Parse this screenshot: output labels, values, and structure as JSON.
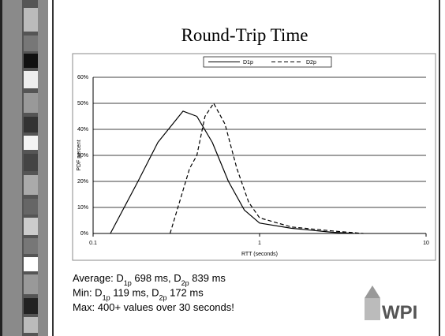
{
  "slide": {
    "title": "Round-Trip Time",
    "lines": [
      [
        "Average: D",
        "1p",
        " 698 ms, D",
        "2p",
        " 839 ms"
      ],
      [
        "Min: D",
        "1p",
        " 119 ms, D",
        "2p",
        " 172 ms"
      ],
      [
        "Max: 400+ values over 30 seconds!"
      ]
    ],
    "logo": "WPI"
  },
  "chart_data": {
    "type": "line",
    "xlabel": "RTT (seconds)",
    "ylabel": "PDF percent",
    "xscale": "log",
    "xlim": [
      0.1,
      10
    ],
    "xticks": [
      0.1,
      1,
      10
    ],
    "ylim": [
      0,
      60
    ],
    "yticks": [
      {
        "value": 0,
        "label": "0%"
      },
      {
        "value": 10,
        "label": "10%"
      },
      {
        "value": 20,
        "label": "20%"
      },
      {
        "value": 30,
        "label": "30%"
      },
      {
        "value": 40,
        "label": "40%"
      },
      {
        "value": 50,
        "label": "50%"
      },
      {
        "value": 60,
        "label": "60%"
      }
    ],
    "grid": true,
    "legend": "top",
    "series": [
      {
        "name": "D1p",
        "color": "#000000",
        "style": "solid",
        "x": [
          0.127,
          0.186,
          0.245,
          0.347,
          0.42,
          0.52,
          0.65,
          0.81,
          1.0,
          1.55,
          2.7,
          3.7
        ],
        "values": [
          0,
          20,
          35,
          47,
          45,
          35,
          20,
          9,
          4,
          2,
          0.5,
          0
        ]
      },
      {
        "name": "D2p",
        "color": "#000000",
        "style": "dashed",
        "x": [
          0.29,
          0.38,
          0.42,
          0.47,
          0.53,
          0.62,
          0.73,
          0.86,
          1.0,
          1.55,
          2.7,
          4.2
        ],
        "values": [
          0,
          25,
          30,
          45,
          50,
          42,
          25,
          12,
          6,
          2.5,
          1,
          0
        ]
      }
    ]
  }
}
